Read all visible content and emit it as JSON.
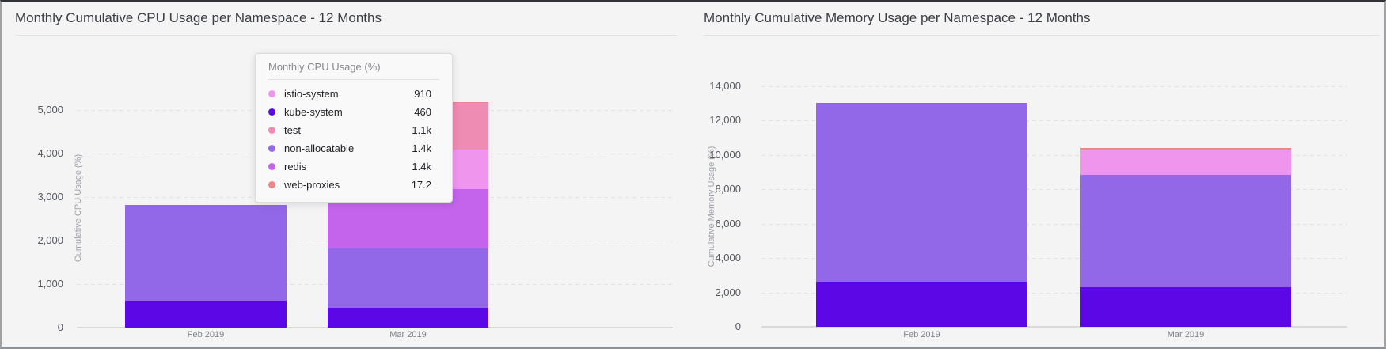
{
  "series_colors": {
    "istio-system": "#f095ee",
    "kube-system": "#5c08e6",
    "test": "#ee8cb3",
    "non-allocatable": "#9267e8",
    "redis": "#c464ec",
    "web-proxies": "#ef8689"
  },
  "tooltip": {
    "title": "Monthly CPU Usage (%)",
    "rows": [
      {
        "series": "istio-system",
        "value": "910"
      },
      {
        "series": "kube-system",
        "value": "460"
      },
      {
        "series": "test",
        "value": "1.1k"
      },
      {
        "series": "non-allocatable",
        "value": "1.4k"
      },
      {
        "series": "redis",
        "value": "1.4k"
      },
      {
        "series": "web-proxies",
        "value": "17.2"
      }
    ]
  },
  "chart_data": [
    {
      "type": "bar",
      "stacked": true,
      "title": "Monthly Cumulative CPU Usage per Namespace - 12 Months",
      "ylabel": "Cumulative CPU Usage (%)",
      "xlabel": "",
      "categories": [
        "Feb 2019",
        "Mar 2019"
      ],
      "ylim": [
        0,
        5500
      ],
      "yticks": [
        0,
        1000,
        2000,
        3000,
        4000,
        5000
      ],
      "ytick_labels": [
        "0",
        "1,000",
        "2,000",
        "3,000",
        "4,000",
        "5,000"
      ],
      "grid": "dashed-horizontal",
      "legend_position": "none",
      "series": [
        {
          "name": "kube-system",
          "values": [
            620,
            460
          ]
        },
        {
          "name": "non-allocatable",
          "values": [
            2200,
            1365
          ]
        },
        {
          "name": "redis",
          "values": [
            0,
            1365
          ]
        },
        {
          "name": "istio-system",
          "values": [
            0,
            910
          ]
        },
        {
          "name": "test",
          "values": [
            0,
            1060
          ]
        },
        {
          "name": "web-proxies",
          "values": [
            0,
            17.2
          ]
        }
      ]
    },
    {
      "type": "bar",
      "stacked": true,
      "title": "Monthly Cumulative Memory Usage per Namespace - 12 Months",
      "ylabel": "Cumulative Memory Usage (%)",
      "xlabel": "",
      "categories": [
        "Feb 2019",
        "Mar 2019"
      ],
      "ylim": [
        0,
        14500
      ],
      "yticks": [
        0,
        2000,
        4000,
        6000,
        8000,
        10000,
        12000,
        14000
      ],
      "ytick_labels": [
        "0",
        "2,000",
        "4,000",
        "6,000",
        "8,000",
        "10,000",
        "12,000",
        "14,000"
      ],
      "grid": "dashed-horizontal",
      "legend_position": "none",
      "series": [
        {
          "name": "kube-system",
          "values": [
            2600,
            2300
          ]
        },
        {
          "name": "non-allocatable",
          "values": [
            10400,
            6550
          ]
        },
        {
          "name": "istio-system",
          "values": [
            0,
            1400
          ]
        },
        {
          "name": "web-proxies",
          "values": [
            0,
            150
          ]
        }
      ]
    }
  ]
}
